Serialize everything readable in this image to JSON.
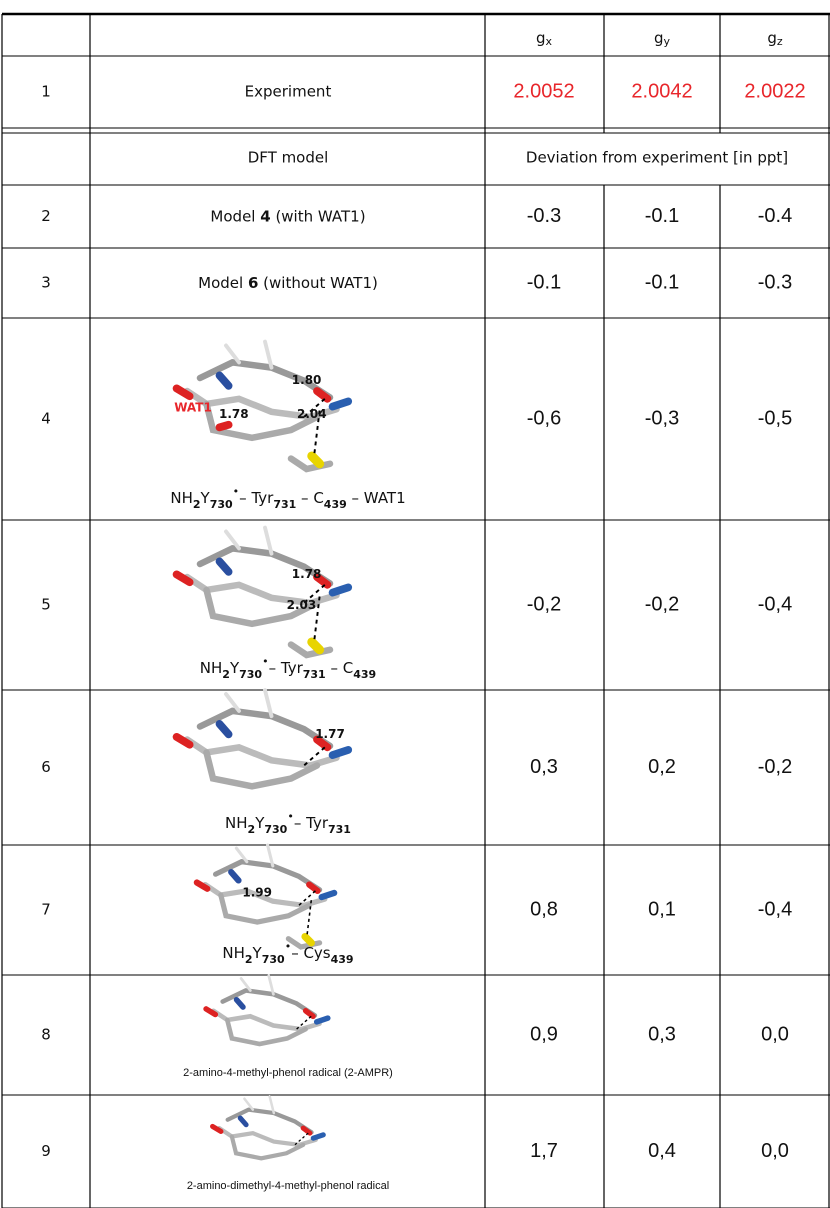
{
  "header": {
    "columns": [
      {
        "base": "g",
        "sub": "x"
      },
      {
        "base": "g",
        "sub": "y"
      },
      {
        "base": "g",
        "sub": "z"
      }
    ]
  },
  "experiment": {
    "index": "1",
    "label": "Experiment",
    "values": [
      "2.0052",
      "2.0042",
      "2.0022"
    ]
  },
  "subheader": {
    "model": "DFT model",
    "deviation": "Deviation from experiment [in ppt]"
  },
  "rows": [
    {
      "index": "2",
      "label": [
        "Model ",
        "4",
        " (with WAT1)"
      ],
      "values": [
        "-0.3",
        "-0.1",
        "-0.4"
      ]
    },
    {
      "index": "3",
      "label": [
        "Model ",
        "6",
        " (without WAT1)"
      ],
      "values": [
        "-0.1",
        "-0.1",
        "-0.3"
      ]
    },
    {
      "index": "4",
      "distances": [
        "1.80",
        "1.78",
        "2.04"
      ],
      "water": "WAT1",
      "caption": [
        "NH",
        "2",
        "Y",
        "730",
        "•",
        "– Tyr",
        "731",
        " – C",
        "439",
        " – WAT1"
      ],
      "values": [
        "-0,6",
        "-0,3",
        "-0,5"
      ]
    },
    {
      "index": "5",
      "distances": [
        "1.78",
        "2.03"
      ],
      "caption": [
        "NH",
        "2",
        "Y",
        "730",
        "•",
        "– Tyr",
        "731",
        " – C",
        "439"
      ],
      "values": [
        "-0,2",
        "-0,2",
        "-0,4"
      ]
    },
    {
      "index": "6",
      "distances": [
        "1.77"
      ],
      "caption": [
        "NH",
        "2",
        "Y",
        "730",
        "•",
        "– Tyr",
        "731"
      ],
      "values": [
        "0,3",
        "0,2",
        "-0,2"
      ]
    },
    {
      "index": "7",
      "distances": [
        "1.99"
      ],
      "caption": [
        "NH",
        "2",
        "Y",
        "730",
        "•",
        "– Cys",
        "439"
      ],
      "values": [
        "0,8",
        "0,1",
        "-0,4"
      ]
    },
    {
      "index": "8",
      "caption": [
        "2-amino-4-methyl-phenol radical (2-AMPR)"
      ],
      "values": [
        "0,9",
        "0,3",
        "0,0"
      ]
    },
    {
      "index": "9",
      "caption": [
        "2-amino-dimethyl-4-methyl-phenol radical"
      ],
      "values": [
        "1,7",
        "0,4",
        "0,0"
      ]
    }
  ]
}
